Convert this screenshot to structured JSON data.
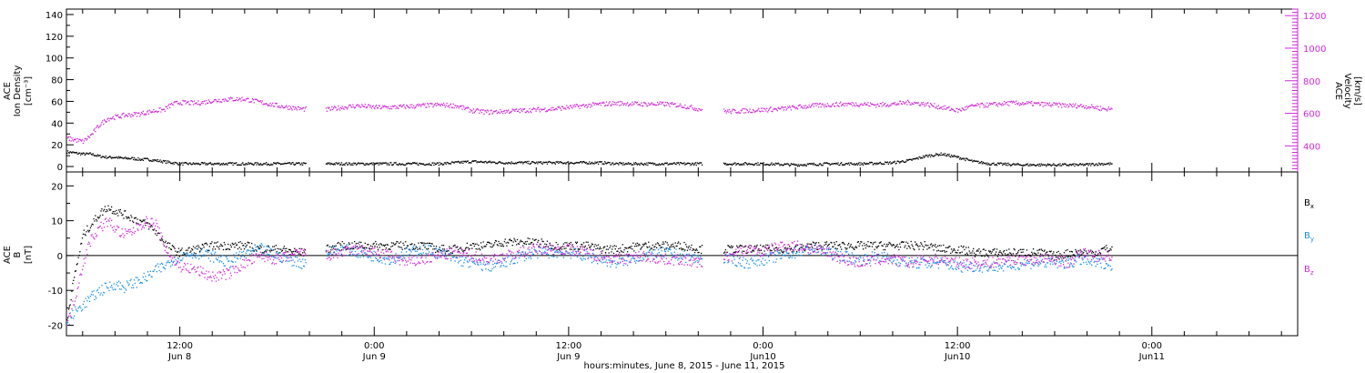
{
  "colors": {
    "density": "#000000",
    "velocity": "#d02ad8",
    "bx": "#000000",
    "by": "#1a8fe8",
    "bz": "#d02ad8",
    "axis": "#000000"
  },
  "chart_data": [
    {
      "type": "scatter",
      "panel": "top",
      "ylabel_left_lines": [
        "ACE",
        "Ion Density",
        "[cm⁻³]"
      ],
      "ylabel_right_lines": [
        "ACE",
        "Velocity",
        "[km/s]"
      ],
      "ylim_left": [
        -5,
        145
      ],
      "yticks_left": [
        "0",
        "20",
        "40",
        "60",
        "80",
        "100",
        "120",
        "140"
      ],
      "ylim_right": [
        240,
        1240
      ],
      "yticks_right": [
        "400",
        "600",
        "800",
        "1000",
        "1200"
      ],
      "series": [
        {
          "name": "Ion Density",
          "axis": "left",
          "x": [
            5.0,
            5.5,
            6.0,
            6.5,
            7.0,
            7.5,
            8.0,
            8.5,
            9.0,
            9.5,
            10.0,
            10.5,
            11.0,
            11.5,
            12.0,
            14.0,
            16.0,
            18.0,
            19.5,
            22.0,
            0.0,
            2.0,
            4.0,
            6.0,
            8.0,
            10.0,
            12.0,
            14.0,
            15.0,
            16.5,
            18.0,
            20.0,
            22.0,
            0.0,
            2.0,
            4.0,
            6.0,
            8.0,
            9.0,
            10.0,
            11.0,
            12.0,
            13.0,
            14.0,
            16.0,
            18.0,
            19.5,
            21.0,
            22.0
          ],
          "y": [
            14,
            13,
            12,
            12,
            10,
            9,
            9,
            8,
            8,
            7,
            7,
            6,
            5,
            4,
            3,
            3,
            3,
            3,
            3,
            3,
            3,
            3,
            3,
            5,
            4,
            4,
            4,
            4,
            3,
            3,
            3,
            3,
            3,
            3,
            2,
            3,
            3,
            4,
            6,
            10,
            12,
            9,
            5,
            3,
            2,
            2,
            2,
            3,
            3
          ]
        },
        {
          "name": "Velocity",
          "axis": "right",
          "x": [
            5.0,
            5.5,
            6.0,
            6.5,
            7.0,
            7.5,
            8.0,
            8.5,
            9.0,
            9.5,
            10.0,
            10.5,
            11.0,
            11.5,
            12.0,
            13.0,
            14.0,
            15.0,
            16.0,
            17.0,
            18.0,
            19.5,
            21.0,
            22.0,
            23.0,
            0.0,
            1.0,
            2.0,
            3.0,
            4.0,
            5.0,
            6.0,
            7.0,
            8.0,
            9.0,
            10.0,
            11.0,
            12.0,
            13.0,
            14.0,
            15.0,
            16.5,
            18.0,
            19.0,
            20.0,
            21.0,
            22.0,
            23.0,
            0.0,
            1.0,
            2.0,
            3.0,
            4.0,
            5.0,
            6.0,
            7.0,
            8.0,
            9.0,
            10.0,
            11.0,
            12.0,
            13.0,
            14.0,
            15.0,
            16.0,
            17.0,
            18.0,
            19.0,
            19.5,
            20.5,
            21.0,
            22.0
          ],
          "y": [
            450,
            440,
            430,
            470,
            530,
            570,
            580,
            590,
            595,
            600,
            610,
            620,
            625,
            660,
            670,
            665,
            680,
            690,
            690,
            670,
            650,
            630,
            625,
            640,
            650,
            640,
            640,
            645,
            650,
            655,
            650,
            620,
            610,
            615,
            620,
            625,
            630,
            640,
            650,
            660,
            665,
            660,
            660,
            650,
            630,
            620,
            615,
            620,
            625,
            630,
            640,
            650,
            655,
            660,
            660,
            655,
            660,
            670,
            660,
            640,
            620,
            650,
            655,
            665,
            665,
            660,
            655,
            650,
            650,
            640,
            630,
            630
          ]
        }
      ]
    },
    {
      "type": "scatter",
      "panel": "bottom",
      "ylabel_lines": [
        "ACE",
        "B",
        "[nT]"
      ],
      "ylim": [
        -23,
        24
      ],
      "yticks": [
        "-20",
        "-10",
        "0",
        "10",
        "20"
      ],
      "zero_line": true,
      "series": [
        {
          "name": "B",
          "subscript": "x",
          "x": [
            5.0,
            5.5,
            6.0,
            6.5,
            7.0,
            7.5,
            8.0,
            8.5,
            9.0,
            9.5,
            10.0,
            10.5,
            11.0,
            11.5,
            12.0,
            13.0,
            14.0,
            15.0,
            16.0,
            17.0,
            18.0,
            19.5,
            21.0,
            22.0,
            23.0,
            0.0,
            1.0,
            2.0,
            3.0,
            4.0,
            5.0,
            6.0,
            7.0,
            8.0,
            9.0,
            10.0,
            11.0,
            12.0,
            13.0,
            14.0,
            15.0,
            16.5,
            18.0,
            19.0,
            20.0,
            21.0,
            22.0,
            23.0,
            0.0,
            1.0,
            2.0,
            3.0,
            4.0,
            5.0,
            6.0,
            7.0,
            8.0,
            9.0,
            10.0,
            11.0,
            12.0,
            13.0,
            14.0,
            15.0,
            16.0,
            17.0,
            18.0,
            19.0,
            19.5,
            20.5,
            21.0,
            22.0
          ],
          "y": [
            -18,
            -5,
            6,
            9,
            12,
            14,
            13,
            12,
            11,
            10,
            9,
            7,
            4,
            2,
            1,
            2,
            3,
            3,
            3,
            2,
            2,
            1,
            2,
            3,
            3,
            3,
            3,
            3,
            3,
            2,
            2,
            3,
            3,
            4,
            4,
            4,
            3,
            3,
            3,
            2,
            2,
            3,
            3,
            3,
            2,
            2,
            2,
            2,
            2,
            2,
            2,
            3,
            3,
            3,
            3,
            3,
            3,
            3,
            3,
            2,
            2,
            1,
            1,
            1,
            1,
            1,
            0,
            1,
            1,
            1,
            2,
            2
          ]
        },
        {
          "name": "B",
          "subscript": "y",
          "x": [
            5.0,
            5.5,
            6.0,
            6.5,
            7.0,
            7.5,
            8.0,
            8.5,
            9.0,
            9.5,
            10.0,
            10.5,
            11.0,
            11.5,
            12.0,
            13.0,
            14.0,
            15.0,
            16.0,
            17.0,
            18.0,
            19.5,
            21.0,
            22.0,
            23.0,
            0.0,
            1.0,
            2.0,
            3.0,
            4.0,
            5.0,
            6.0,
            7.0,
            8.0,
            9.0,
            10.0,
            11.0,
            12.0,
            13.0,
            14.0,
            15.0,
            16.5,
            18.0,
            19.0,
            20.0,
            21.0,
            22.0,
            23.0,
            0.0,
            1.0,
            2.0,
            3.0,
            4.0,
            5.0,
            6.0,
            7.0,
            8.0,
            9.0,
            10.0,
            11.0,
            12.0,
            13.0,
            14.0,
            15.0,
            16.0,
            17.0,
            18.0,
            19.0,
            19.5,
            20.5,
            21.0,
            22.0
          ],
          "y": [
            -19,
            -16,
            -14,
            -12,
            -10,
            -9,
            -8,
            -9,
            -8,
            -7,
            -6,
            -4,
            -3,
            -1,
            0,
            1,
            0,
            -2,
            1,
            2,
            0,
            -2,
            1,
            2,
            1,
            0,
            -1,
            1,
            2,
            1,
            -1,
            -2,
            -3,
            -2,
            0,
            1,
            1,
            1,
            0,
            -1,
            -2,
            0,
            1,
            0,
            -1,
            0,
            -1,
            -2,
            -1,
            0,
            1,
            2,
            1,
            0,
            -1,
            0,
            -1,
            -2,
            -2,
            -2,
            -3,
            -3,
            -3,
            -3,
            -2,
            -2,
            -2,
            -2,
            -1,
            -2,
            -2,
            -3
          ]
        },
        {
          "name": "B",
          "subscript": "z",
          "x": [
            5.0,
            5.5,
            6.0,
            6.5,
            7.0,
            7.5,
            8.0,
            8.5,
            9.0,
            9.5,
            10.0,
            10.5,
            11.0,
            11.5,
            12.0,
            13.0,
            14.0,
            15.0,
            16.0,
            17.0,
            18.0,
            19.5,
            21.0,
            22.0,
            23.0,
            0.0,
            1.0,
            2.0,
            3.0,
            4.0,
            5.0,
            6.0,
            7.0,
            8.0,
            9.0,
            10.0,
            11.0,
            12.0,
            13.0,
            14.0,
            15.0,
            16.5,
            18.0,
            19.0,
            20.0,
            21.0,
            22.0,
            23.0,
            0.0,
            1.0,
            2.0,
            3.0,
            4.0,
            5.0,
            6.0,
            7.0,
            8.0,
            9.0,
            10.0,
            11.0,
            12.0,
            13.0,
            14.0,
            15.0,
            16.0,
            17.0,
            18.0,
            19.0,
            19.5,
            20.5,
            21.0,
            22.0
          ],
          "y": [
            -20,
            -12,
            -2,
            5,
            8,
            10,
            8,
            6,
            7,
            9,
            10,
            9,
            3,
            -1,
            -3,
            -4,
            -6,
            -5,
            -2,
            0,
            -1,
            1,
            0,
            1,
            2,
            1,
            0,
            -2,
            -1,
            0,
            1,
            0,
            -1,
            0,
            1,
            2,
            2,
            2,
            1,
            0,
            -1,
            0,
            -1,
            -1,
            -2,
            -1,
            0,
            2,
            1,
            3,
            3,
            2,
            1,
            -1,
            -2,
            -1,
            -1,
            -2,
            -1,
            -1,
            -2,
            -2,
            -2,
            -1,
            -1,
            -1,
            -1,
            -2,
            1,
            0,
            0,
            0
          ]
        }
      ]
    }
  ],
  "x_axis": {
    "start_hour": 5,
    "end_hour": 81,
    "gaps": [
      [
        19.8,
        21.0
      ],
      [
        44.2,
        45.5
      ],
      [
        69.5,
        70.5
      ]
    ],
    "ticks": [
      {
        "hour": 12,
        "time": "12:00",
        "date": "Jun 8"
      },
      {
        "hour": 24,
        "time": "0:00",
        "date": "Jun 9"
      },
      {
        "hour": 36,
        "time": "12:00",
        "date": "Jun 9"
      },
      {
        "hour": 48,
        "time": "0:00",
        "date": "Jun10"
      },
      {
        "hour": 60,
        "time": "12:00",
        "date": "Jun10"
      },
      {
        "hour": 72,
        "time": "0:00",
        "date": "Jun11"
      }
    ],
    "label": "hours:minutes, June  8, 2015 - June 11, 2015"
  }
}
